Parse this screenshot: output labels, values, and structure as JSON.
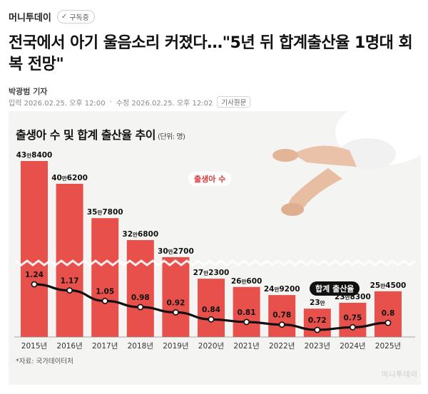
{
  "header": {
    "brand": "머니투데이",
    "subscribe_label": "구독중"
  },
  "article": {
    "headline": "전국에서 아기 울음소리 커졌다…\"5년 뒤 합계출산율 1명대 회복 전망\"",
    "byline": "박광범 기자",
    "input_time": "입력 2026.02.25. 오후 12:00",
    "edit_time": "수정 2026.02.25. 오후 12:02",
    "original_button": "기사원문"
  },
  "figure": {
    "source": "*자료: 국가데이터처",
    "watermark": "머니투데이"
  },
  "colors": {
    "bar": "#e8504c",
    "bar_label": "#d9363a",
    "line": "#111111",
    "background": "#f4f4f2"
  },
  "chart_data": {
    "type": "bar",
    "title": "출생아 수 및 합계 출산율 추이",
    "unit": "(단위: 명)",
    "categories": [
      "2015년",
      "2016년",
      "2017년",
      "2018년",
      "2019년",
      "2020년",
      "2021년",
      "2022년",
      "2023년",
      "2024년",
      "2025년"
    ],
    "series": [
      {
        "name": "출생아 수",
        "type": "bar",
        "values": [
          438400,
          406200,
          357800,
          326800,
          302700,
          272300,
          260600,
          249200,
          230000,
          238300,
          254500
        ],
        "labels": [
          [
            "43만",
            "8400"
          ],
          [
            "40만",
            "6200"
          ],
          [
            "35만",
            "7800"
          ],
          [
            "32만",
            "6800"
          ],
          [
            "30만",
            "2700"
          ],
          [
            "27만",
            "2300"
          ],
          [
            "26만",
            "600"
          ],
          [
            "24만",
            "9200"
          ],
          [
            "23만",
            ""
          ],
          [
            "23만",
            "8300"
          ],
          [
            "25만",
            "4500"
          ]
        ]
      },
      {
        "name": "합계 출산율",
        "type": "line",
        "values": [
          1.24,
          1.17,
          1.05,
          0.98,
          0.92,
          0.84,
          0.81,
          0.78,
          0.72,
          0.75,
          0.8
        ],
        "labels": [
          "1.24",
          "1.17",
          "1.05",
          "0.98",
          "0.92",
          "0.84",
          "0.81",
          "0.78",
          "0.72",
          "0.75",
          "0.8"
        ]
      }
    ]
  }
}
